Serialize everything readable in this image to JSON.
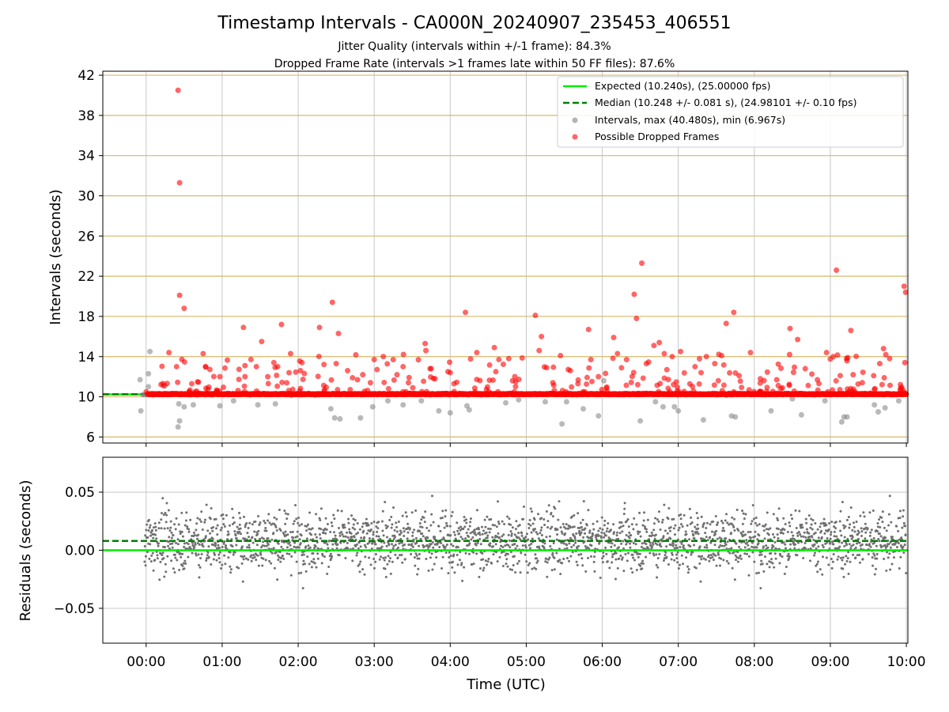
{
  "figure": {
    "title": "Timestamp Intervals - CA000N_20240907_235453_406551",
    "subtitle1": "Jitter Quality (intervals within +/-1 frame): 84.3%",
    "subtitle2": "Dropped Frame Rate (intervals >1 frames late within 50 FF files): 87.6%"
  },
  "colors": {
    "expected": "#00ee00",
    "median": "#008000",
    "intervals": "#808080",
    "dropped": "#ff0000",
    "residuals": "#707070",
    "hgrid_top": "#d8b86a",
    "grid": "#c8c8c8"
  },
  "chart_data": [
    {
      "type": "scatter",
      "panel": "top",
      "ylabel": "Intervals (seconds)",
      "ylim": [
        5.4,
        42.4
      ],
      "xlim_hours": [
        -0.57,
        10.02
      ],
      "yticks": [
        "6",
        "10",
        "14",
        "18",
        "22",
        "26",
        "30",
        "34",
        "38",
        "42"
      ],
      "legend_position": "top-right",
      "legend": [
        {
          "label": "Expected (10.240s), (25.00000 fps)",
          "marker": "line"
        },
        {
          "label": "Median (10.248 +/- 0.081 s), (24.98101 +/- 0.10 fps)",
          "marker": "dashed"
        },
        {
          "label": "Intervals, max (40.480s), min (6.967s)",
          "marker": "dot-gray"
        },
        {
          "label": "Possible Dropped Frames",
          "marker": "dot-red"
        }
      ],
      "expected": 10.24,
      "median": 10.248,
      "series": [
        {
          "name": "Possible Dropped Frames",
          "points_hours_seconds": [
            [
              0.42,
              40.5
            ],
            [
              0.44,
              31.3
            ],
            [
              0.44,
              20.1
            ],
            [
              0.5,
              18.8
            ],
            [
              0.3,
              14.4
            ],
            [
              0.4,
              13.0
            ],
            [
              0.23,
              11.1
            ],
            [
              0.75,
              14.3
            ],
            [
              0.78,
              13.0
            ],
            [
              0.97,
              12.0
            ],
            [
              0.6,
              11.3
            ],
            [
              1.28,
              16.9
            ],
            [
              1.3,
              13.1
            ],
            [
              1.45,
              13.0
            ],
            [
              1.52,
              15.5
            ],
            [
              1.6,
              12.0
            ],
            [
              1.68,
              13.4
            ],
            [
              1.73,
              13.0
            ],
            [
              1.78,
              17.2
            ],
            [
              1.9,
              14.3
            ],
            [
              1.88,
              12.4
            ],
            [
              2.03,
              12.6
            ],
            [
              2.05,
              13.4
            ],
            [
              2.28,
              16.9
            ],
            [
              2.45,
              19.4
            ],
            [
              2.5,
              13.3
            ],
            [
              2.53,
              16.3
            ],
            [
              2.65,
              12.6
            ],
            [
              2.78,
              11.7
            ],
            [
              2.85,
              12.2
            ],
            [
              2.95,
              11.4
            ],
            [
              3.0,
              13.7
            ],
            [
              3.12,
              14.0
            ],
            [
              3.25,
              13.7
            ],
            [
              3.3,
              12.2
            ],
            [
              3.38,
              13.0
            ],
            [
              3.45,
              11.4
            ],
            [
              3.67,
              15.3
            ],
            [
              3.68,
              14.6
            ],
            [
              3.75,
              12.8
            ],
            [
              3.8,
              11.8
            ],
            [
              3.97,
              12.5
            ],
            [
              4.0,
              12.4
            ],
            [
              4.05,
              11.3
            ],
            [
              4.2,
              18.4
            ],
            [
              4.35,
              14.4
            ],
            [
              4.58,
              14.9
            ],
            [
              4.6,
              12.5
            ],
            [
              4.77,
              13.8
            ],
            [
              4.82,
              11.6
            ],
            [
              4.85,
              12.0
            ],
            [
              5.12,
              18.1
            ],
            [
              5.17,
              14.6
            ],
            [
              5.2,
              16.0
            ],
            [
              5.35,
              11.4
            ],
            [
              5.45,
              14.1
            ],
            [
              5.58,
              12.6
            ],
            [
              5.68,
              11.3
            ],
            [
              5.82,
              16.7
            ],
            [
              5.85,
              13.7
            ],
            [
              5.95,
              12.0
            ],
            [
              6.15,
              15.9
            ],
            [
              6.2,
              14.3
            ],
            [
              6.32,
              13.7
            ],
            [
              6.42,
              20.2
            ],
            [
              6.45,
              17.8
            ],
            [
              6.52,
              23.3
            ],
            [
              6.58,
              13.3
            ],
            [
              6.68,
              15.1
            ],
            [
              6.75,
              15.4
            ],
            [
              6.85,
              12.7
            ],
            [
              6.92,
              14.0
            ],
            [
              7.03,
              14.5
            ],
            [
              7.22,
              13.0
            ],
            [
              7.3,
              12.4
            ],
            [
              7.37,
              14.0
            ],
            [
              7.48,
              13.3
            ],
            [
              7.57,
              14.1
            ],
            [
              7.63,
              17.3
            ],
            [
              7.73,
              18.4
            ],
            [
              7.8,
              12.1
            ],
            [
              7.95,
              14.4
            ],
            [
              8.08,
              11.8
            ],
            [
              8.47,
              16.8
            ],
            [
              8.57,
              15.7
            ],
            [
              8.67,
              12.8
            ],
            [
              8.83,
              11.7
            ],
            [
              8.95,
              14.4
            ],
            [
              9.13,
              12.1
            ],
            [
              9.08,
              22.6
            ],
            [
              9.23,
              13.9
            ],
            [
              9.27,
              16.6
            ],
            [
              9.3,
              12.2
            ],
            [
              9.42,
              11.4
            ],
            [
              9.57,
              12.1
            ],
            [
              9.65,
              13.3
            ],
            [
              9.7,
              14.8
            ],
            [
              9.73,
              14.2
            ],
            [
              9.78,
              13.8
            ],
            [
              9.92,
              10.8
            ],
            [
              9.97,
              21.0
            ],
            [
              9.99,
              20.4
            ],
            [
              9.98,
              13.4
            ]
          ]
        },
        {
          "name": "Intervals",
          "points_hours_seconds": [
            [
              -0.08,
              11.7
            ],
            [
              -0.07,
              8.6
            ],
            [
              0.03,
              11.0
            ],
            [
              0.05,
              14.5
            ],
            [
              0.03,
              12.3
            ],
            [
              0.25,
              11.1
            ],
            [
              0.42,
              7.0
            ],
            [
              0.44,
              7.6
            ],
            [
              0.43,
              9.3
            ],
            [
              0.5,
              9.0
            ],
            [
              0.62,
              9.2
            ],
            [
              0.97,
              9.1
            ],
            [
              1.15,
              9.6
            ],
            [
              1.47,
              9.2
            ],
            [
              1.7,
              9.3
            ],
            [
              2.43,
              8.8
            ],
            [
              2.48,
              7.9
            ],
            [
              2.55,
              7.8
            ],
            [
              2.82,
              7.9
            ],
            [
              2.98,
              9.0
            ],
            [
              3.18,
              9.6
            ],
            [
              3.38,
              9.2
            ],
            [
              3.62,
              9.6
            ],
            [
              3.85,
              8.6
            ],
            [
              4.0,
              8.4
            ],
            [
              4.22,
              9.1
            ],
            [
              4.25,
              8.7
            ],
            [
              4.73,
              9.4
            ],
            [
              4.9,
              9.7
            ],
            [
              5.25,
              9.5
            ],
            [
              5.47,
              7.3
            ],
            [
              5.53,
              9.5
            ],
            [
              5.75,
              8.8
            ],
            [
              5.95,
              8.1
            ],
            [
              6.02,
              11.6
            ],
            [
              6.5,
              7.6
            ],
            [
              6.7,
              9.5
            ],
            [
              6.8,
              9.0
            ],
            [
              6.95,
              9.0
            ],
            [
              7.0,
              8.6
            ],
            [
              7.33,
              7.7
            ],
            [
              7.7,
              8.1
            ],
            [
              7.75,
              8.0
            ],
            [
              8.22,
              8.6
            ],
            [
              8.5,
              9.8
            ],
            [
              8.62,
              8.2
            ],
            [
              8.93,
              9.6
            ],
            [
              9.15,
              7.5
            ],
            [
              9.18,
              8.0
            ],
            [
              9.22,
              8.0
            ],
            [
              9.58,
              9.2
            ],
            [
              9.63,
              8.5
            ],
            [
              9.72,
              8.9
            ],
            [
              9.9,
              9.6
            ]
          ]
        }
      ]
    },
    {
      "type": "scatter",
      "panel": "bottom",
      "ylabel": "Residuals (seconds)",
      "xlabel": "Time (UTC)",
      "ylim": [
        -0.08,
        0.08
      ],
      "xlim_hours": [
        -0.57,
        10.02
      ],
      "yticks": [
        "0.05",
        "0.00",
        "−0.05"
      ],
      "xticks": [
        "00:00",
        "01:00",
        "02:00",
        "03:00",
        "04:00",
        "05:00",
        "06:00",
        "07:00",
        "08:00",
        "09:00",
        "10:00"
      ],
      "expected": 0.0,
      "median": 0.008,
      "residual_sample_count": 2400,
      "residual_std": 0.018,
      "grid": true
    }
  ]
}
